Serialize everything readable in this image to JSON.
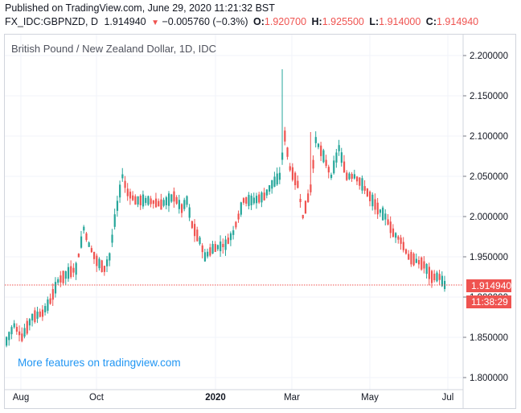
{
  "header": {
    "published": "Published on TradingView.com, June 29, 2020 11:21:32 BST",
    "symbol": "FX_IDC:GBPNZD, D",
    "last": "1.914940",
    "change_arrow": "▼",
    "change": "−0.005760 (−0.3%)",
    "o_label": "O:",
    "o_value": "1.920700",
    "h_label": "H:",
    "h_value": "1.925500",
    "l_label": "L:",
    "l_value": "1.914000",
    "c_label": "C:",
    "c_value": "1.914940"
  },
  "chart_title": "British Pound / New Zealand Dollar, 1D, IDC",
  "promo_link": "More features on tradingview.com",
  "price_badge": "1.914940",
  "countdown_badge": "11:38:29",
  "colors": {
    "up": "#26a69a",
    "down": "#ef5350",
    "grid": "#f0f3fa",
    "axis": "#d1d4dc",
    "promo": "#2196f3"
  },
  "chart_data": {
    "type": "candlestick",
    "title": "British Pound / New Zealand Dollar, 1D, IDC",
    "ylim": [
      1.79,
      2.21
    ],
    "y_ticks": [
      "2.200000",
      "2.150000",
      "2.100000",
      "2.050000",
      "2.000000",
      "1.950000",
      "1.900000",
      "1.850000",
      "1.800000"
    ],
    "x_ticks": [
      {
        "label": "Aug",
        "bold": false
      },
      {
        "label": "Oct",
        "bold": false
      },
      {
        "label": "2020",
        "bold": true
      },
      {
        "label": "Mar",
        "bold": false
      },
      {
        "label": "May",
        "bold": false
      },
      {
        "label": "Jul",
        "bold": false
      }
    ],
    "last_price": 1.91494,
    "approx_path_points": [
      [
        0,
        1.845
      ],
      [
        3,
        1.865
      ],
      [
        6,
        1.85
      ],
      [
        10,
        1.875
      ],
      [
        14,
        1.88
      ],
      [
        17,
        1.895
      ],
      [
        20,
        1.92
      ],
      [
        24,
        1.93
      ],
      [
        27,
        1.935
      ],
      [
        30,
        1.985
      ],
      [
        32,
        1.965
      ],
      [
        35,
        1.945
      ],
      [
        38,
        1.935
      ],
      [
        40,
        1.95
      ],
      [
        42,
        1.995
      ],
      [
        45,
        2.05
      ],
      [
        47,
        2.03
      ],
      [
        50,
        2.02
      ],
      [
        55,
        2.02
      ],
      [
        60,
        2.015
      ],
      [
        65,
        2.025
      ],
      [
        68,
        2.01
      ],
      [
        70,
        2.02
      ],
      [
        72,
        1.99
      ],
      [
        75,
        1.97
      ],
      [
        77,
        1.95
      ],
      [
        80,
        1.96
      ],
      [
        85,
        1.965
      ],
      [
        88,
        1.98
      ],
      [
        92,
        2.02
      ],
      [
        96,
        2.02
      ],
      [
        100,
        2.025
      ],
      [
        103,
        2.04
      ],
      [
        106,
        2.05
      ],
      [
        108,
        2.1
      ],
      [
        110,
        2.06
      ],
      [
        113,
        2.04
      ],
      [
        115,
        2.0
      ],
      [
        118,
        2.035
      ],
      [
        120,
        2.095
      ],
      [
        123,
        2.075
      ],
      [
        126,
        2.05
      ],
      [
        129,
        2.085
      ],
      [
        132,
        2.05
      ],
      [
        135,
        2.05
      ],
      [
        138,
        2.04
      ],
      [
        141,
        2.025
      ],
      [
        144,
        2.01
      ],
      [
        147,
        2.0
      ],
      [
        150,
        1.98
      ],
      [
        153,
        1.97
      ],
      [
        156,
        1.95
      ],
      [
        159,
        1.945
      ],
      [
        162,
        1.94
      ],
      [
        165,
        1.925
      ],
      [
        168,
        1.925
      ],
      [
        170,
        1.915
      ]
    ],
    "spikes": [
      {
        "bar": 107,
        "high": 2.183
      },
      {
        "bar": 118,
        "high": 2.105
      }
    ]
  }
}
